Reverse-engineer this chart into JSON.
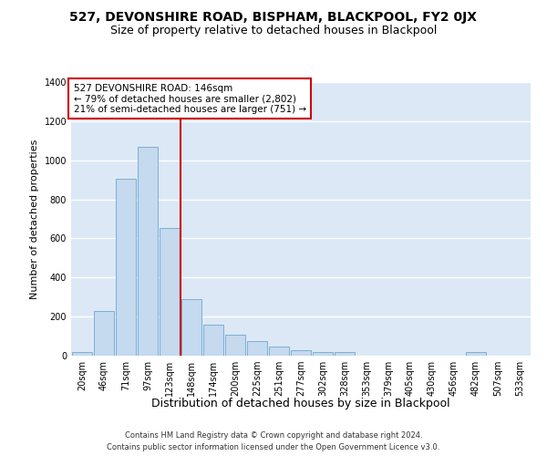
{
  "title1": "527, DEVONSHIRE ROAD, BISPHAM, BLACKPOOL, FY2 0JX",
  "title2": "Size of property relative to detached houses in Blackpool",
  "xlabel": "Distribution of detached houses by size in Blackpool",
  "ylabel": "Number of detached properties",
  "categories": [
    "20sqm",
    "46sqm",
    "71sqm",
    "97sqm",
    "123sqm",
    "148sqm",
    "174sqm",
    "200sqm",
    "225sqm",
    "251sqm",
    "277sqm",
    "302sqm",
    "328sqm",
    "353sqm",
    "379sqm",
    "405sqm",
    "430sqm",
    "456sqm",
    "482sqm",
    "507sqm",
    "533sqm"
  ],
  "values": [
    18,
    228,
    905,
    1070,
    655,
    290,
    160,
    108,
    75,
    45,
    27,
    20,
    20,
    0,
    0,
    0,
    0,
    0,
    18,
    0,
    0
  ],
  "bar_color": "#c5d9ef",
  "bar_edge_color": "#7bafd4",
  "vline_color": "#cc0000",
  "vline_pos": 4.5,
  "annotation_line1": "527 DEVONSHIRE ROAD: 146sqm",
  "annotation_line2": "← 79% of detached houses are smaller (2,802)",
  "annotation_line3": "21% of semi-detached houses are larger (751) →",
  "footer1": "Contains HM Land Registry data © Crown copyright and database right 2024.",
  "footer2": "Contains public sector information licensed under the Open Government Licence v3.0.",
  "bg_color": "#dce8f5",
  "ylim_max": 1400,
  "yticks": [
    0,
    200,
    400,
    600,
    800,
    1000,
    1200,
    1400
  ],
  "title1_fontsize": 10,
  "title2_fontsize": 9,
  "ylabel_fontsize": 8,
  "xlabel_fontsize": 9,
  "tick_fontsize": 7,
  "annot_fontsize": 7.5,
  "footer_fontsize": 6
}
